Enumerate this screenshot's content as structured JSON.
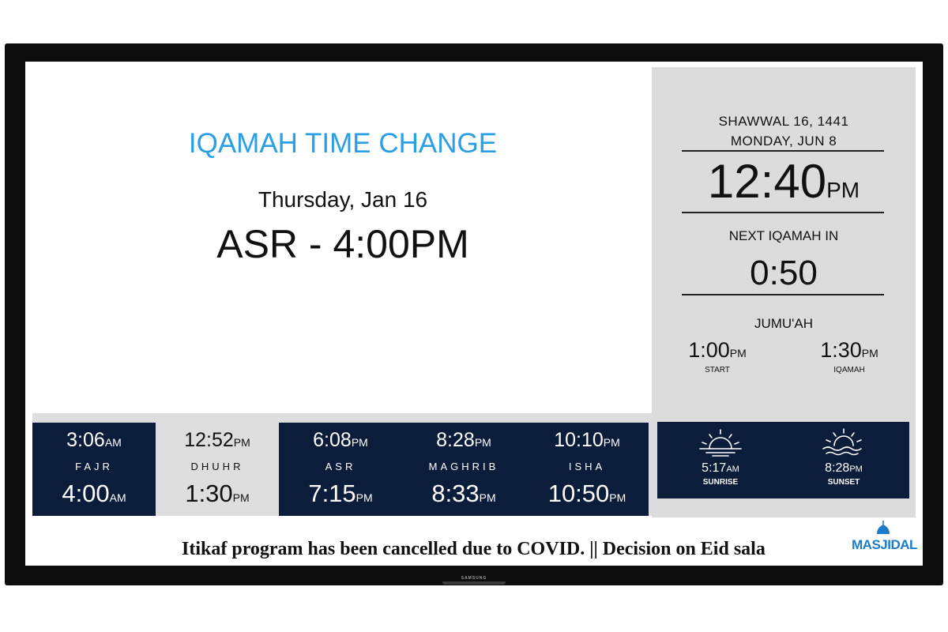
{
  "tv": {
    "brand": "SAMSUNG"
  },
  "announcement": {
    "title": "IQAMAH TIME CHANGE",
    "date": "Thursday, Jan 16",
    "change": "ASR - 4:00PM"
  },
  "info": {
    "hijri_date": "SHAWWAL 16, 1441",
    "gregorian_date": "MONDAY, JUN 8",
    "clock_time": "12:40",
    "clock_ampm": "PM",
    "next_iqamah_label": "NEXT IQAMAH IN",
    "next_iqamah_countdown": "0:50",
    "jumuah": {
      "label": "JUMU'AH",
      "start_time": "1:00",
      "start_ampm": "PM",
      "start_label": "START",
      "iqamah_time": "1:30",
      "iqamah_ampm": "PM",
      "iqamah_label": "IQAMAH"
    }
  },
  "prayers": [
    {
      "name": "FAJR",
      "adhan": "3:06",
      "adhan_ampm": "AM",
      "iqamah": "4:00",
      "iqamah_ampm": "AM"
    },
    {
      "name": "DHUHR",
      "adhan": "12:52",
      "adhan_ampm": "PM",
      "iqamah": "1:30",
      "iqamah_ampm": "PM"
    },
    {
      "name": "ASR",
      "adhan": "6:08",
      "adhan_ampm": "PM",
      "iqamah": "7:15",
      "iqamah_ampm": "PM"
    },
    {
      "name": "MAGHRIB",
      "adhan": "8:28",
      "adhan_ampm": "PM",
      "iqamah": "8:33",
      "iqamah_ampm": "PM"
    },
    {
      "name": "ISHA",
      "adhan": "10:10",
      "adhan_ampm": "PM",
      "iqamah": "10:50",
      "iqamah_ampm": "PM"
    }
  ],
  "sun": {
    "sunrise_time": "5:17",
    "sunrise_ampm": "AM",
    "sunrise_label": "SUNRISE",
    "sunset_time": "8:28",
    "sunset_ampm": "PM",
    "sunset_label": "SUNSET"
  },
  "ticker": {
    "text": "Itikaf program has been cancelled due to COVID.  ||  Decision on Eid sala"
  },
  "logo": {
    "text": "MASJIDAL"
  },
  "colors": {
    "navy": "#0c1c3b",
    "accent_blue": "#2b9fe6",
    "panel_gray": "#dcdcdc",
    "logo_blue": "#1d7cc8"
  }
}
